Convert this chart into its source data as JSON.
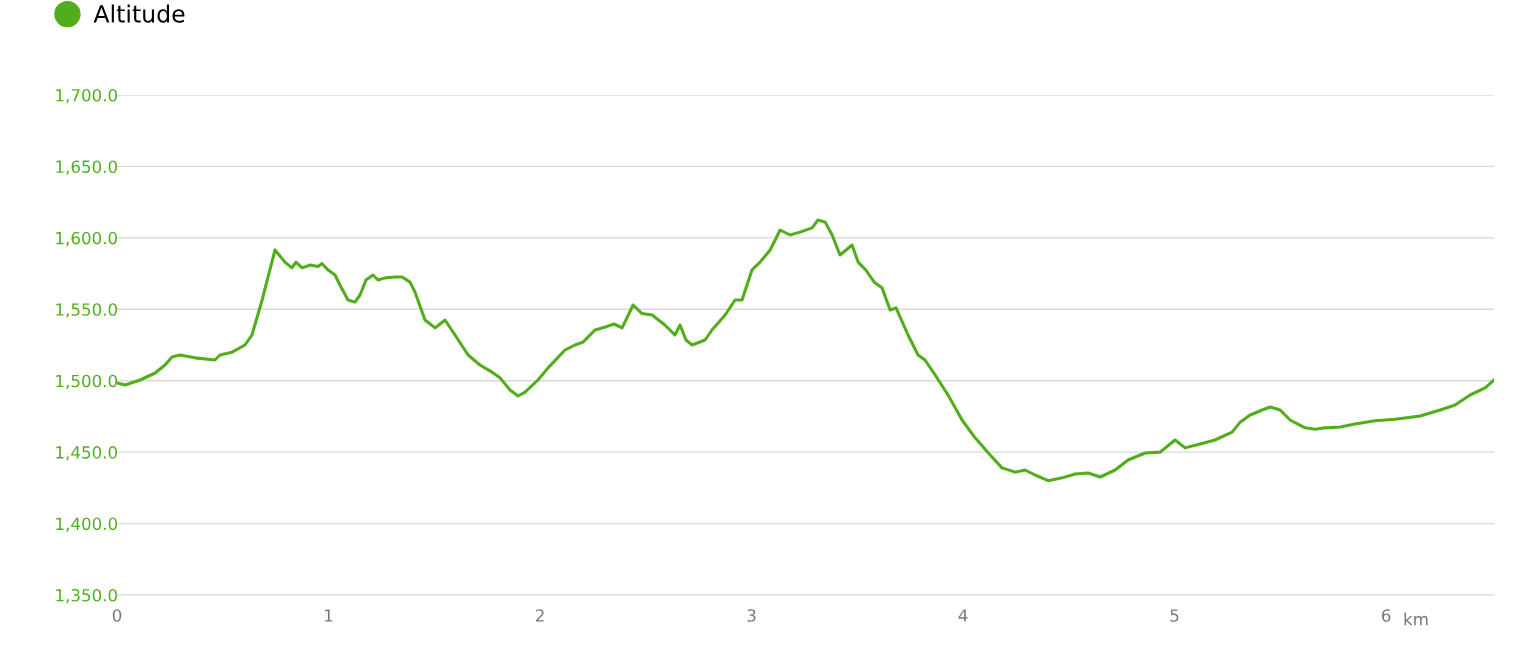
{
  "chart_data": {
    "type": "line",
    "xlabel": "km",
    "x": [
      0,
      0.038,
      0.109,
      0.18,
      0.227,
      0.26,
      0.298,
      0.369,
      0.463,
      0.487,
      0.544,
      0.605,
      0.638,
      0.686,
      0.747,
      0.794,
      0.827,
      0.846,
      0.875,
      0.913,
      0.95,
      0.969,
      0.998,
      1.031,
      1.054,
      1.092,
      1.125,
      1.149,
      1.177,
      1.21,
      1.234,
      1.267,
      1.314,
      1.348,
      1.385,
      1.409,
      1.456,
      1.504,
      1.551,
      1.598,
      1.66,
      1.716,
      1.773,
      1.811,
      1.858,
      1.896,
      1.929,
      1.99,
      2.038,
      2.118,
      2.165,
      2.203,
      2.26,
      2.317,
      2.35,
      2.388,
      2.44,
      2.482,
      2.53,
      2.59,
      2.638,
      2.662,
      2.69,
      2.719,
      2.78,
      2.813,
      2.875,
      2.922,
      2.955,
      3.002,
      3.04,
      3.088,
      3.135,
      3.182,
      3.229,
      3.286,
      3.314,
      3.348,
      3.381,
      3.418,
      3.447,
      3.475,
      3.504,
      3.54,
      3.58,
      3.617,
      3.655,
      3.683,
      3.74,
      3.787,
      3.82,
      3.868,
      3.929,
      3.995,
      4.057,
      4.128,
      4.184,
      4.246,
      4.293,
      4.34,
      4.402,
      4.468,
      4.53,
      4.591,
      4.648,
      4.719,
      4.78,
      4.861,
      4.932,
      5.002,
      5.05,
      5.12,
      5.191,
      5.272,
      5.31,
      5.357,
      5.414,
      5.452,
      5.499,
      5.546,
      5.617,
      5.664,
      5.712,
      5.783,
      5.853,
      5.948,
      6.043,
      6.161,
      6.255,
      6.326,
      6.397,
      6.468,
      6.51
    ],
    "series": [
      {
        "name": "Altitude",
        "color": "#52ad1c",
        "values": [
          1498.4,
          1497,
          1500.5,
          1505.4,
          1511,
          1516.6,
          1518,
          1516,
          1514.5,
          1518,
          1520,
          1525,
          1532,
          1556.5,
          1591.5,
          1583,
          1579,
          1583,
          1579,
          1581,
          1580,
          1582,
          1577.5,
          1574,
          1567,
          1556.5,
          1555,
          1560,
          1570.5,
          1574,
          1570.5,
          1572,
          1572.6,
          1572.6,
          1569,
          1562,
          1542.5,
          1537,
          1542.5,
          1532,
          1518,
          1511,
          1506,
          1502,
          1493.5,
          1489.3,
          1492,
          1500.5,
          1509,
          1521.5,
          1525,
          1527,
          1535.5,
          1538,
          1539.7,
          1537,
          1553,
          1547,
          1546,
          1539,
          1532,
          1539,
          1528.5,
          1525,
          1528.5,
          1535.5,
          1546,
          1556.5,
          1556.5,
          1577.5,
          1583,
          1591.5,
          1605.5,
          1602,
          1604,
          1607,
          1612.5,
          1611,
          1602,
          1588,
          1591.5,
          1595,
          1583,
          1577.5,
          1569,
          1565,
          1549.5,
          1551,
          1532,
          1518,
          1514.5,
          1504,
          1490,
          1472.5,
          1460,
          1448,
          1439,
          1436,
          1437.5,
          1434,
          1430,
          1432,
          1434.7,
          1435.4,
          1432.6,
          1437.5,
          1444.5,
          1449.4,
          1450,
          1458.5,
          1453,
          1455.7,
          1458.5,
          1464,
          1471,
          1476,
          1479.5,
          1481.6,
          1479.5,
          1472.5,
          1467,
          1466,
          1467,
          1467.6,
          1469.7,
          1472,
          1473,
          1475.3,
          1479.5,
          1483,
          1490,
          1495,
          1500.5
        ]
      }
    ],
    "xlim": [
      0,
      6.51
    ],
    "xticks": [
      0,
      1,
      2,
      3,
      4,
      5,
      6
    ],
    "ylim": [
      1350,
      1700
    ],
    "yticks": [
      {
        "value": 1350,
        "label": "1,350.0"
      },
      {
        "value": 1400,
        "label": "1,400.0"
      },
      {
        "value": 1450,
        "label": "1,450.0"
      },
      {
        "value": 1500,
        "label": "1,500.0"
      },
      {
        "value": 1550,
        "label": "1,550.0"
      },
      {
        "value": 1600,
        "label": "1,600.0"
      },
      {
        "value": 1650,
        "label": "1,650.0"
      },
      {
        "value": 1700,
        "label": "1,700.0"
      }
    ],
    "grid": "y",
    "legend": "top left"
  }
}
